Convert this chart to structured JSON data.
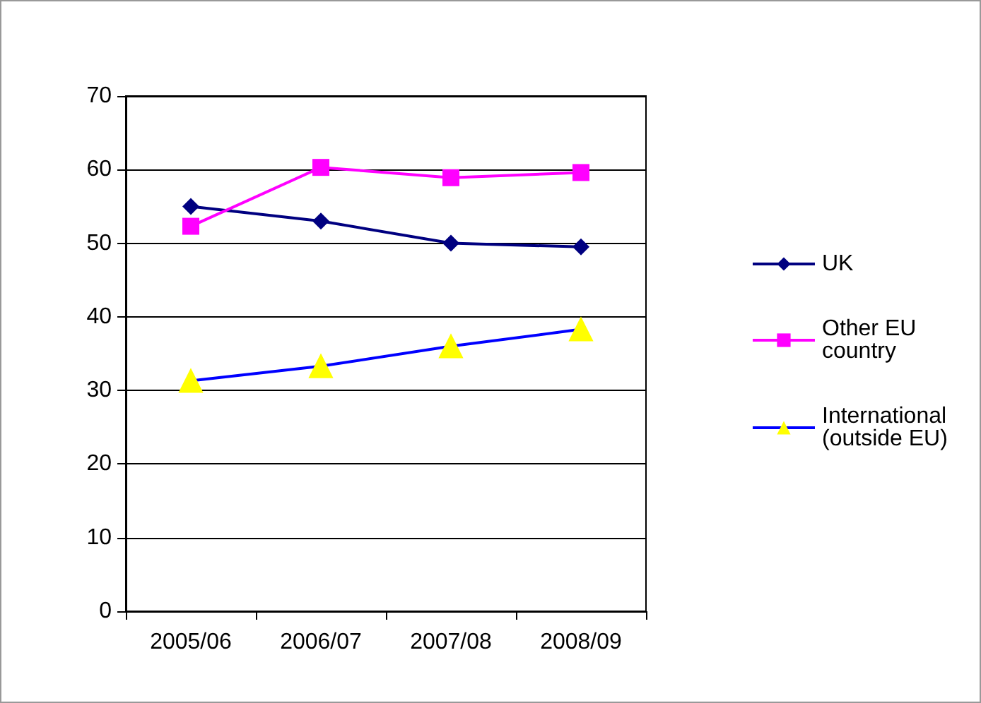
{
  "chart_data": {
    "type": "line",
    "categories": [
      "2005/06",
      "2006/07",
      "2007/08",
      "2008/09"
    ],
    "series": [
      {
        "name": "UK",
        "color": "#000080",
        "marker": "diamond",
        "values": [
          55,
          53,
          50,
          49.5
        ]
      },
      {
        "name": "Other EU country",
        "color": "#ff00ff",
        "marker": "square",
        "values": [
          52.3,
          60.3,
          58.9,
          59.6
        ]
      },
      {
        "name": "International (outside EU)",
        "color": "#0000ff",
        "marker": "triangle",
        "colors": [
          "#ffff00",
          "#ffff00",
          "#ffff00",
          "#ffff00"
        ],
        "values": [
          31.3,
          33.3,
          36,
          38.3
        ]
      }
    ],
    "ylim": [
      0,
      70
    ],
    "yticks": [
      0,
      10,
      20,
      30,
      40,
      50,
      60,
      70
    ],
    "grid": "y",
    "legend": "right"
  }
}
